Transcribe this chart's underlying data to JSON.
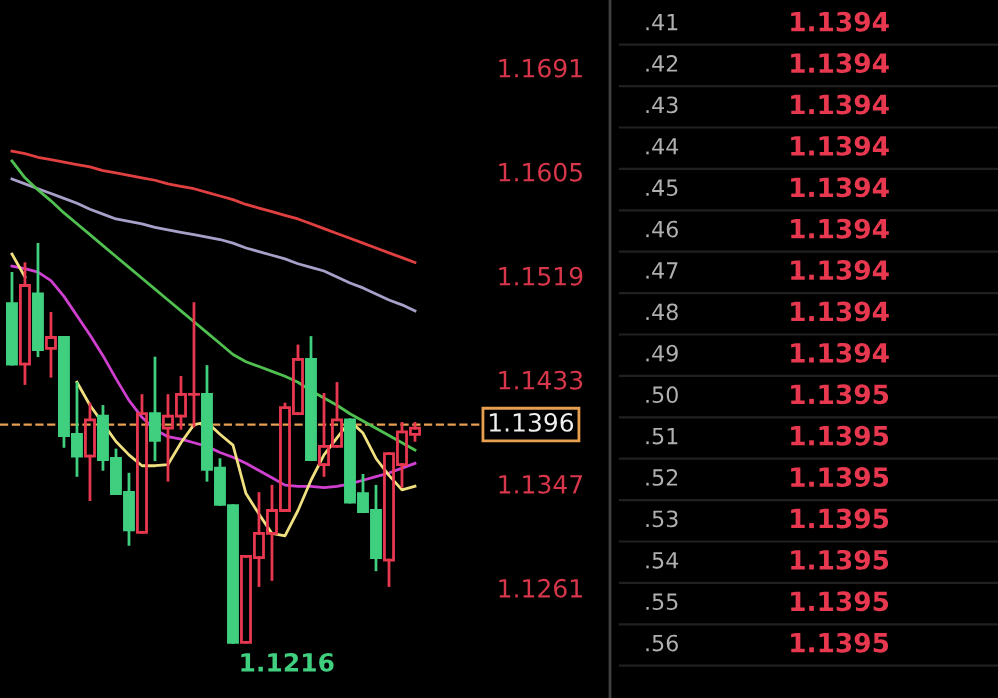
{
  "chart_data": {
    "type": "candlestick",
    "categories": [
      null,
      null,
      null,
      null,
      null,
      null,
      null,
      null,
      null,
      null,
      null,
      null,
      null,
      null,
      null,
      null,
      null,
      null,
      null,
      null,
      null,
      null,
      null,
      null,
      null,
      null,
      null,
      null,
      null,
      null,
      null,
      null
    ],
    "ohlc": [
      [
        1.1496,
        1.1521,
        1.1446,
        1.1446
      ],
      [
        1.1446,
        1.1529,
        1.143,
        1.1511
      ],
      [
        1.1504,
        1.1545,
        1.1453,
        1.1458
      ],
      [
        1.1459,
        1.1488,
        1.1436,
        1.1468
      ],
      [
        1.1468,
        1.1468,
        1.1378,
        1.1387
      ],
      [
        1.1388,
        1.143,
        1.1354,
        1.137
      ],
      [
        1.137,
        1.1413,
        1.1334,
        1.14
      ],
      [
        1.1403,
        1.1411,
        1.1359,
        1.1367
      ],
      [
        1.1368,
        1.1375,
        1.1339,
        1.1339
      ],
      [
        1.134,
        1.1355,
        1.1297,
        1.1309
      ],
      [
        1.1307,
        1.142,
        1.1307,
        1.1405
      ],
      [
        1.1405,
        1.1451,
        1.1367,
        1.1383
      ],
      [
        1.1393,
        1.142,
        1.135,
        1.1403
      ],
      [
        1.1403,
        1.1435,
        1.1393,
        1.1421
      ],
      [
        1.1421,
        1.1496,
        1.1395,
        1.1421
      ],
      [
        1.1421,
        1.1444,
        1.135,
        1.1359
      ],
      [
        1.136,
        1.1367,
        1.133,
        1.133
      ],
      [
        1.1329,
        1.1329,
        1.1216,
        1.1216
      ],
      [
        1.1216,
        1.1287,
        1.1216,
        1.1287
      ],
      [
        1.1286,
        1.1339,
        1.1263,
        1.1306
      ],
      [
        1.1306,
        1.1345,
        1.1268,
        1.1325
      ],
      [
        1.1325,
        1.1413,
        1.1325,
        1.141
      ],
      [
        1.1405,
        1.1461,
        1.1405,
        1.145
      ],
      [
        1.145,
        1.1468,
        1.1367,
        1.1367
      ],
      [
        1.1363,
        1.1421,
        1.1354,
        1.1378
      ],
      [
        1.1378,
        1.143,
        1.1378,
        1.14
      ],
      [
        1.14,
        1.14,
        1.1332,
        1.1332
      ],
      [
        1.1339,
        1.1354,
        1.1324,
        1.1324
      ],
      [
        1.1325,
        1.1345,
        1.1276,
        1.1286
      ],
      [
        1.1284,
        1.1372,
        1.1263,
        1.1372
      ],
      [
        1.1363,
        1.1397,
        1.1345,
        1.139
      ],
      [
        1.1388,
        1.1397,
        1.1383,
        1.1393
      ]
    ],
    "series": [
      {
        "type": "line",
        "color": "#e04040",
        "values": [
          1.1622,
          1.162,
          1.1617,
          1.1615,
          1.1613,
          1.1611,
          1.1609,
          1.1606,
          1.1604,
          1.1602,
          1.16,
          1.1598,
          1.1595,
          1.1593,
          1.1591,
          1.1588,
          1.1585,
          1.1582,
          1.1578,
          1.1575,
          1.1572,
          1.1569,
          1.1566,
          1.1562,
          1.1558,
          1.1554,
          1.155,
          1.1546,
          1.1542,
          1.1538,
          1.1534,
          1.153
        ]
      },
      {
        "type": "line",
        "color": "#a8a0c8",
        "values": [
          1.1599,
          1.1595,
          1.1591,
          1.1587,
          1.1583,
          1.1579,
          1.1574,
          1.157,
          1.1566,
          1.1564,
          1.1562,
          1.1559,
          1.1557,
          1.1555,
          1.1553,
          1.1551,
          1.1549,
          1.1546,
          1.1542,
          1.1539,
          1.1536,
          1.1533,
          1.1529,
          1.1526,
          1.1523,
          1.1518,
          1.1513,
          1.1509,
          1.1504,
          1.1499,
          1.1495,
          1.149
        ]
      },
      {
        "type": "line",
        "color": "#50c050",
        "values": [
          1.1614,
          1.16,
          1.159,
          1.1581,
          1.1571,
          1.1562,
          1.1553,
          1.1544,
          1.1535,
          1.1526,
          1.1517,
          1.1508,
          1.1499,
          1.149,
          1.1481,
          1.1472,
          1.1463,
          1.1454,
          1.1448,
          1.1444,
          1.144,
          1.1436,
          1.1431,
          1.1424,
          1.1418,
          1.1412,
          1.1405,
          1.1399,
          1.1393,
          1.1387,
          1.1381,
          1.1375
        ]
      },
      {
        "type": "line",
        "color": "#d040d0",
        "values": [
          1.1527,
          1.1525,
          1.1522,
          1.1515,
          1.1502,
          1.1486,
          1.147,
          1.1453,
          1.1434,
          1.1416,
          1.1402,
          1.1392,
          1.1386,
          1.1384,
          1.1381,
          1.1378,
          1.1373,
          1.1369,
          1.1364,
          1.1358,
          1.1352,
          1.1346,
          1.1345,
          1.1345,
          1.1344,
          1.1345,
          1.1347,
          1.135,
          1.1353,
          1.1356,
          1.136,
          1.1364
        ]
      },
      {
        "type": "line",
        "color": "#f0e080",
        "values": [
          1.1537,
          1.1518,
          null,
          null,
          null,
          1.1431,
          1.1412,
          1.1397,
          1.1382,
          1.1371,
          1.1362,
          1.1362,
          1.1363,
          1.1381,
          1.1396,
          1.1398,
          1.1388,
          1.1379,
          1.1339,
          1.1322,
          1.1306,
          1.1304,
          1.1325,
          1.135,
          1.1371,
          1.1385,
          1.1399,
          1.1389,
          1.1368,
          1.1354,
          1.1342,
          1.1345
        ]
      }
    ],
    "ylim": [
      1.117,
      1.1747
    ],
    "yticks": [
      1.1261,
      1.1347,
      1.1433,
      1.1519,
      1.1605,
      1.1691
    ],
    "tick_labels": "y",
    "ref_lines": [
      {
        "axis": "y",
        "value": 1.1396,
        "label": "1.1396",
        "color": "#e8a050",
        "line_style": "dashed"
      }
    ],
    "annotations": [
      "1.1216",
      ".41",
      "1.1394",
      ".42",
      "1.1394",
      ".43",
      "1.1394",
      ".44",
      "1.1394",
      ".45",
      "1.1394",
      ".46",
      "1.1394",
      ".47",
      "1.1394",
      ".48",
      "1.1394",
      ".49",
      "1.1394",
      ".50",
      "1.1395",
      ".51",
      "1.1395",
      ".52",
      "1.1395",
      ".53",
      "1.1395",
      ".54",
      "1.1395",
      ".55",
      "1.1395",
      ".56",
      "1.1395"
    ]
  }
}
